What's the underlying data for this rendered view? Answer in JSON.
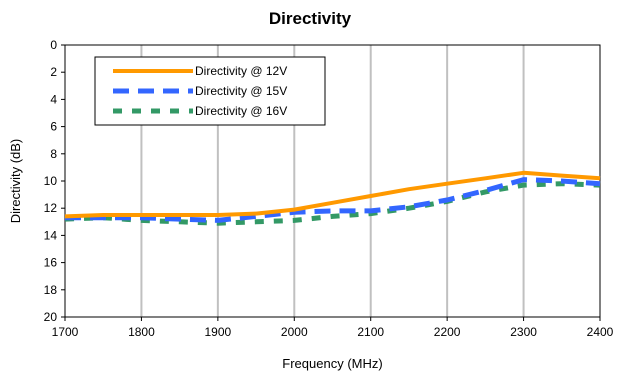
{
  "chart_data": {
    "type": "line",
    "title": "Directivity",
    "xlabel": "Frequency (MHz)",
    "ylabel": "Directivity (dB)",
    "xlim": [
      1700,
      2400
    ],
    "ylim": [
      0,
      20
    ],
    "y_inverted": true,
    "xticks": [
      1700,
      1800,
      1900,
      2000,
      2100,
      2200,
      2300,
      2400
    ],
    "yticks": [
      0,
      2,
      4,
      6,
      8,
      10,
      12,
      14,
      16,
      18,
      20
    ],
    "grid": "vertical",
    "legend_position": "top-left",
    "series": [
      {
        "name": "Directivity @  12V",
        "color": "#ff9900",
        "style": "solid",
        "x": [
          1700,
          1750,
          1800,
          1850,
          1900,
          1950,
          2000,
          2050,
          2100,
          2150,
          2200,
          2250,
          2300,
          2350,
          2400
        ],
        "y": [
          12.6,
          12.5,
          12.5,
          12.5,
          12.5,
          12.4,
          12.1,
          11.6,
          11.1,
          10.6,
          10.2,
          9.8,
          9.4,
          9.6,
          9.8
        ]
      },
      {
        "name": "Directivity @  15V",
        "color": "#3366ff",
        "style": "dashed",
        "x": [
          1700,
          1750,
          1800,
          1850,
          1900,
          1950,
          2000,
          2050,
          2100,
          2150,
          2200,
          2250,
          2300,
          2350,
          2400
        ],
        "y": [
          12.7,
          12.7,
          12.7,
          12.8,
          12.9,
          12.6,
          12.3,
          12.2,
          12.2,
          11.9,
          11.4,
          10.7,
          9.9,
          10.0,
          10.2
        ]
      },
      {
        "name": "Directivity @  16V",
        "color": "#339966",
        "style": "dotted-dashed",
        "x": [
          1700,
          1750,
          1800,
          1850,
          1900,
          1950,
          2000,
          2050,
          2100,
          2150,
          2200,
          2250,
          2300,
          2350,
          2400
        ],
        "y": [
          12.8,
          12.7,
          12.9,
          13.0,
          13.1,
          13.0,
          12.9,
          12.6,
          12.4,
          12.0,
          11.5,
          10.8,
          10.3,
          10.2,
          10.3
        ]
      }
    ]
  }
}
